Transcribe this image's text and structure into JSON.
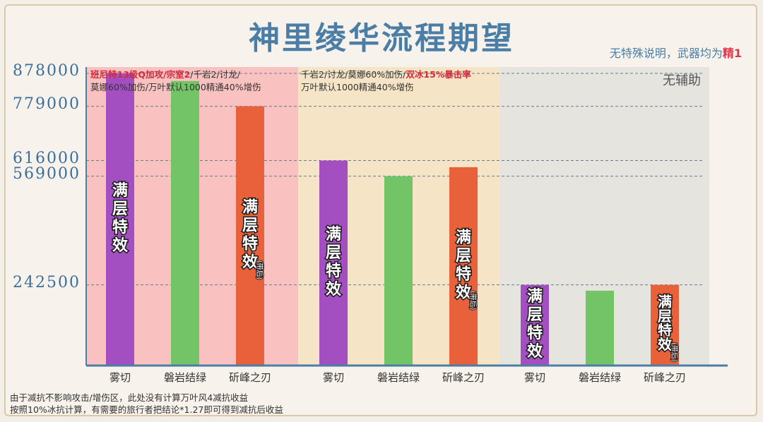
{
  "header": {
    "title": "神里绫华流程期望",
    "subtitle_prefix": "无特殊说明，武器均为",
    "subtitle_emph": "精1"
  },
  "panels": [
    {
      "line1_a": "班尼特13级Q加攻/宗室2",
      "line1_b": "/千岩2/讨龙/",
      "line2": "莫娜60%加伤/万叶默认1000精通40%增伤"
    },
    {
      "line1_a": "千岩2/讨龙/莫娜60%加伤/",
      "line1_b": "双冰15%暴击率",
      "line2": "万叶默认1000精通40%增伤"
    },
    {
      "label": "无辅助"
    }
  ],
  "footer": {
    "line1": "由于减抗不影响攻击/增伤区，此处没有计算万叶风4减抗收益",
    "line2": "按照10%冰抗计算，有需要的旅行者把结论*1.27即可得到减抗后收益"
  },
  "bar_text": {
    "full_stack": "满层特效",
    "backfire": "带后"
  },
  "colors": {
    "purple": "#a34fc1",
    "green": "#72c466",
    "orange": "#e8613a",
    "panel1": "#f9b8b8",
    "panel2": "#f6e1bf",
    "panel3": "#e2e0dc",
    "axis": "#4a7ea6"
  },
  "chart_data": {
    "type": "bar",
    "ylim": [
      0,
      950000
    ],
    "yticks": [
      "878000",
      "779000",
      "616000",
      "569000",
      "242500"
    ],
    "groups": [
      {
        "name": "group1",
        "categories": [
          "雾切",
          "磐岩结绿",
          "斫峰之刃"
        ],
        "values": [
          878000,
          855000,
          779000
        ],
        "colors": [
          "purple",
          "green",
          "orange"
        ],
        "full_stack": [
          true,
          false,
          true
        ],
        "backfire": [
          false,
          false,
          true
        ]
      },
      {
        "name": "group2",
        "categories": [
          "雾切",
          "磐岩结绿",
          "斫峰之刃"
        ],
        "values": [
          616000,
          569000,
          596000
        ],
        "colors": [
          "purple",
          "green",
          "orange"
        ],
        "full_stack": [
          true,
          false,
          true
        ],
        "backfire": [
          false,
          false,
          true
        ]
      },
      {
        "name": "group3",
        "categories": [
          "雾切",
          "磐岩结绿",
          "斫峰之刃"
        ],
        "values": [
          242500,
          225000,
          242500
        ],
        "colors": [
          "purple",
          "green",
          "orange"
        ],
        "full_stack": [
          true,
          false,
          true
        ],
        "backfire": [
          false,
          false,
          true
        ]
      }
    ],
    "grid": "dashed",
    "legend": "none"
  }
}
